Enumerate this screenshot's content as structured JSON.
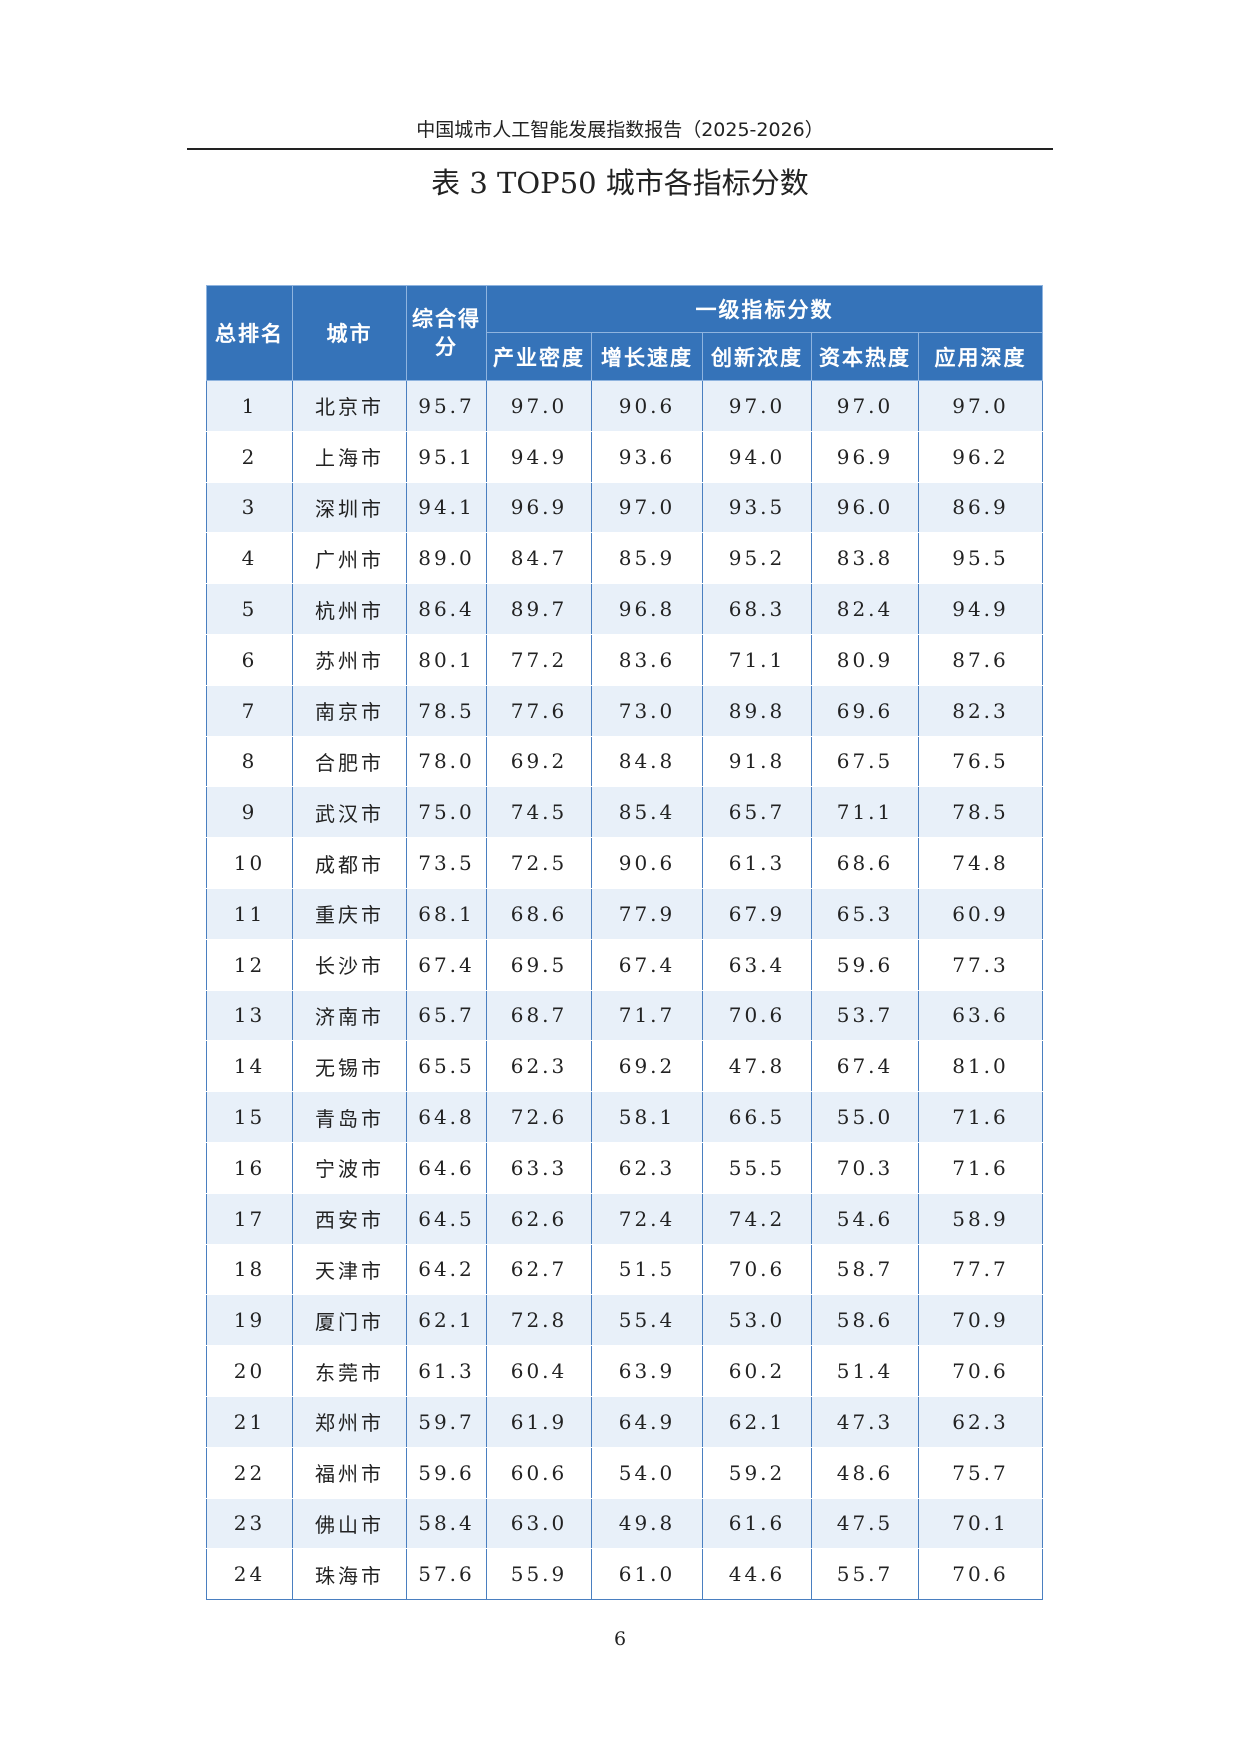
{
  "header": {
    "running_title": "中国城市人工智能发展指数报告（2025-2026）",
    "table_title": "表 3 TOP50 城市各指标分数"
  },
  "table": {
    "col_rank": "总排名",
    "col_city": "城市",
    "col_score": "综合得分",
    "group_header": "一级指标分数",
    "sub_headers": [
      "产业密度",
      "增长速度",
      "创新浓度",
      "资本热度",
      "应用深度"
    ],
    "rows": [
      [
        "1",
        "北京市",
        "95.7",
        "97.0",
        "90.6",
        "97.0",
        "97.0",
        "97.0"
      ],
      [
        "2",
        "上海市",
        "95.1",
        "94.9",
        "93.6",
        "94.0",
        "96.9",
        "96.2"
      ],
      [
        "3",
        "深圳市",
        "94.1",
        "96.9",
        "97.0",
        "93.5",
        "96.0",
        "86.9"
      ],
      [
        "4",
        "广州市",
        "89.0",
        "84.7",
        "85.9",
        "95.2",
        "83.8",
        "95.5"
      ],
      [
        "5",
        "杭州市",
        "86.4",
        "89.7",
        "96.8",
        "68.3",
        "82.4",
        "94.9"
      ],
      [
        "6",
        "苏州市",
        "80.1",
        "77.2",
        "83.6",
        "71.1",
        "80.9",
        "87.6"
      ],
      [
        "7",
        "南京市",
        "78.5",
        "77.6",
        "73.0",
        "89.8",
        "69.6",
        "82.3"
      ],
      [
        "8",
        "合肥市",
        "78.0",
        "69.2",
        "84.8",
        "91.8",
        "67.5",
        "76.5"
      ],
      [
        "9",
        "武汉市",
        "75.0",
        "74.5",
        "85.4",
        "65.7",
        "71.1",
        "78.5"
      ],
      [
        "10",
        "成都市",
        "73.5",
        "72.5",
        "90.6",
        "61.3",
        "68.6",
        "74.8"
      ],
      [
        "11",
        "重庆市",
        "68.1",
        "68.6",
        "77.9",
        "67.9",
        "65.3",
        "60.9"
      ],
      [
        "12",
        "长沙市",
        "67.4",
        "69.5",
        "67.4",
        "63.4",
        "59.6",
        "77.3"
      ],
      [
        "13",
        "济南市",
        "65.7",
        "68.7",
        "71.7",
        "70.6",
        "53.7",
        "63.6"
      ],
      [
        "14",
        "无锡市",
        "65.5",
        "62.3",
        "69.2",
        "47.8",
        "67.4",
        "81.0"
      ],
      [
        "15",
        "青岛市",
        "64.8",
        "72.6",
        "58.1",
        "66.5",
        "55.0",
        "71.6"
      ],
      [
        "16",
        "宁波市",
        "64.6",
        "63.3",
        "62.3",
        "55.5",
        "70.3",
        "71.6"
      ],
      [
        "17",
        "西安市",
        "64.5",
        "62.6",
        "72.4",
        "74.2",
        "54.6",
        "58.9"
      ],
      [
        "18",
        "天津市",
        "64.2",
        "62.7",
        "51.5",
        "70.6",
        "58.7",
        "77.7"
      ],
      [
        "19",
        "厦门市",
        "62.1",
        "72.8",
        "55.4",
        "53.0",
        "58.6",
        "70.9"
      ],
      [
        "20",
        "东莞市",
        "61.3",
        "60.4",
        "63.9",
        "60.2",
        "51.4",
        "70.6"
      ],
      [
        "21",
        "郑州市",
        "59.7",
        "61.9",
        "64.9",
        "62.1",
        "47.3",
        "62.3"
      ],
      [
        "22",
        "福州市",
        "59.6",
        "60.6",
        "54.0",
        "59.2",
        "48.6",
        "75.7"
      ],
      [
        "23",
        "佛山市",
        "58.4",
        "63.0",
        "49.8",
        "61.6",
        "47.5",
        "70.1"
      ],
      [
        "24",
        "珠海市",
        "57.6",
        "55.9",
        "61.0",
        "44.6",
        "55.7",
        "70.6"
      ]
    ]
  },
  "footer": {
    "page_number": "6"
  }
}
